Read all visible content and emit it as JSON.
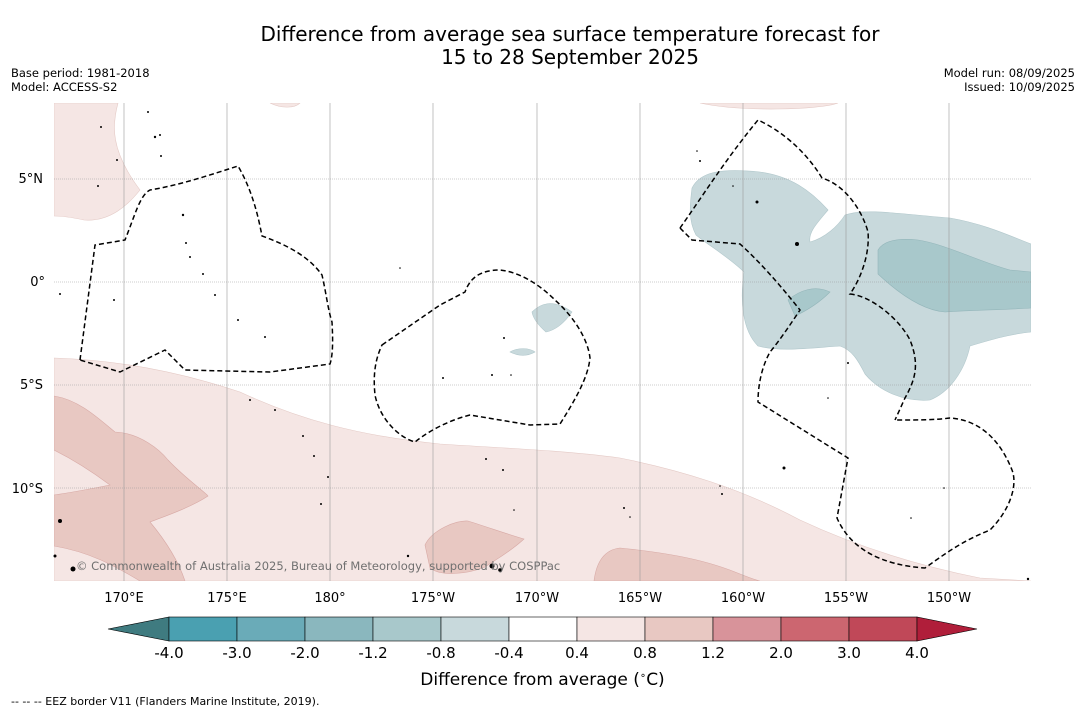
{
  "title_line1": "Difference from average sea surface temperature forecast for",
  "title_line2": "15 to 28 September 2025",
  "base_period": "Base period: 1981-2018",
  "model": "Model: ACCESS-S2",
  "model_run": "Model run: 08/09/2025",
  "issued": "Issued: 10/09/2025",
  "copyright": "© Commonwealth of Australia 2025, Bureau of Meteorology, supported by COSPPac",
  "lat_labels": [
    "5°N",
    "0°",
    "5°S",
    "10°S"
  ],
  "lon_labels": [
    "170°E",
    "175°E",
    "180°",
    "175°W",
    "170°W",
    "165°W",
    "160°W",
    "155°W",
    "150°W"
  ],
  "colorbar": {
    "title": "Difference from average ($^\\circ$C)",
    "ticks": [
      "-4.0",
      "-3.0",
      "-2.0",
      "-1.2",
      "-0.8",
      "-0.4",
      "0.4",
      "0.8",
      "1.2",
      "2.0",
      "3.0",
      "4.0"
    ],
    "colors": [
      "#3f7b80",
      "#4aa0b1",
      "#6aabb8",
      "#8ab7be",
      "#a8c8cb",
      "#c8d9dc",
      "#ffffff",
      "#f5e6e4",
      "#e8c8c2",
      "#d8939a",
      "#cc6670",
      "#c04858",
      "#b01e3a"
    ]
  },
  "footer": "--  --  -- EEZ border V11 (Flanders Marine Institute, 2019)."
}
